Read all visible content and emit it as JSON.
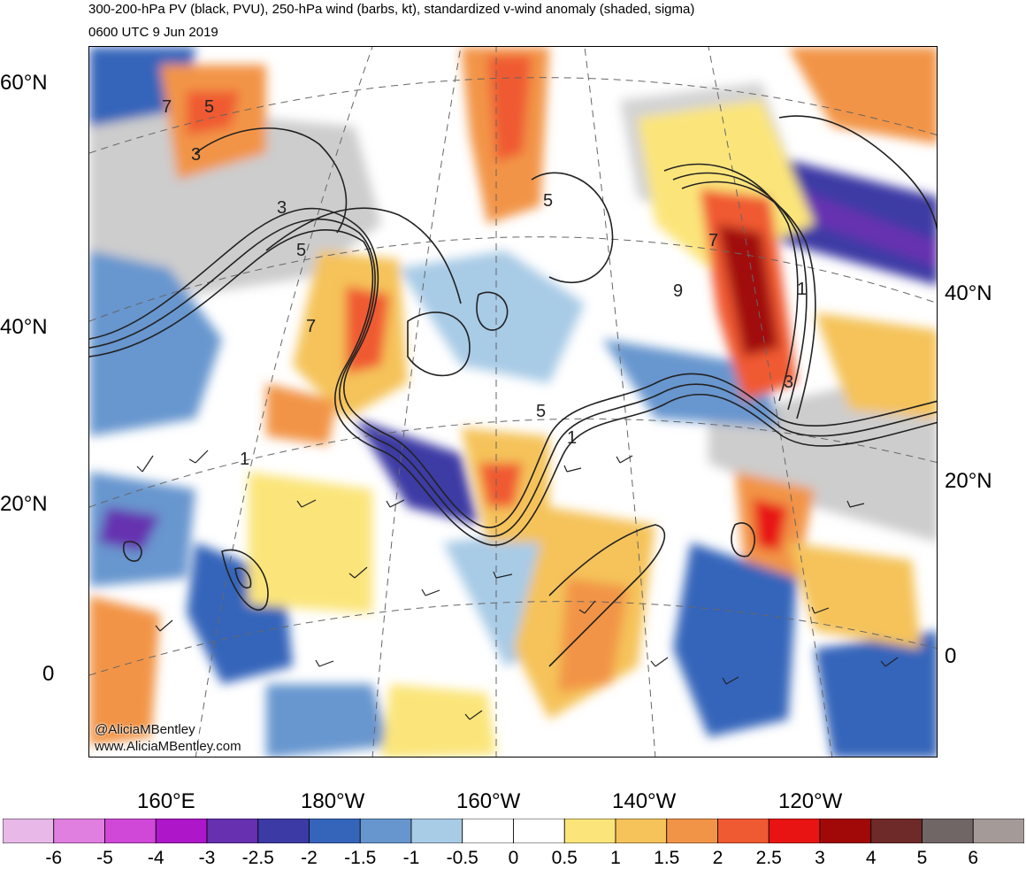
{
  "header": {
    "title": "300-200-hPa PV (black, PVU), 250-hPa wind (barbs, kt), standardized v-wind anomaly (shaded, sigma)",
    "subtitle": "0600 UTC 9 Jun 2019"
  },
  "map": {
    "lat_labels_left": [
      "60°N",
      "40°N",
      "20°N",
      "0"
    ],
    "lat_labels_right": [
      "40°N",
      "20°N",
      "0"
    ],
    "lon_labels": [
      "160°E",
      "180°W",
      "160°W",
      "140°W",
      "120°W"
    ],
    "contour_labels": [
      "7",
      "5",
      "3",
      "3",
      "5",
      "7",
      "5",
      "9",
      "7",
      "1",
      "3",
      "1",
      "5",
      "1"
    ],
    "credits": [
      "@AliciaMBentley",
      "www.AliciaMBentley.com"
    ]
  },
  "colorbar": {
    "labels": [
      "-6",
      "-5",
      "-4",
      "-3",
      "-2.5",
      "-2",
      "-1.5",
      "-1",
      "-0.5",
      "0",
      "0.5",
      "1",
      "1.5",
      "2",
      "2.5",
      "3",
      "4",
      "5",
      "6"
    ],
    "colors": [
      "#e8b8e8",
      "#e07fe0",
      "#d048d8",
      "#ad16c9",
      "#6630b0",
      "#3c3aa4",
      "#3565ba",
      "#6796cf",
      "#a8cbe6",
      "#ffffff",
      "#ffffff",
      "#fbe57a",
      "#f5c35a",
      "#f29447",
      "#f05a32",
      "#e81414",
      "#a10808",
      "#6e2a28",
      "#6f6665",
      "#a49a98"
    ]
  },
  "colors": {
    "land": "#c8c8c8",
    "contour": "#222222"
  }
}
